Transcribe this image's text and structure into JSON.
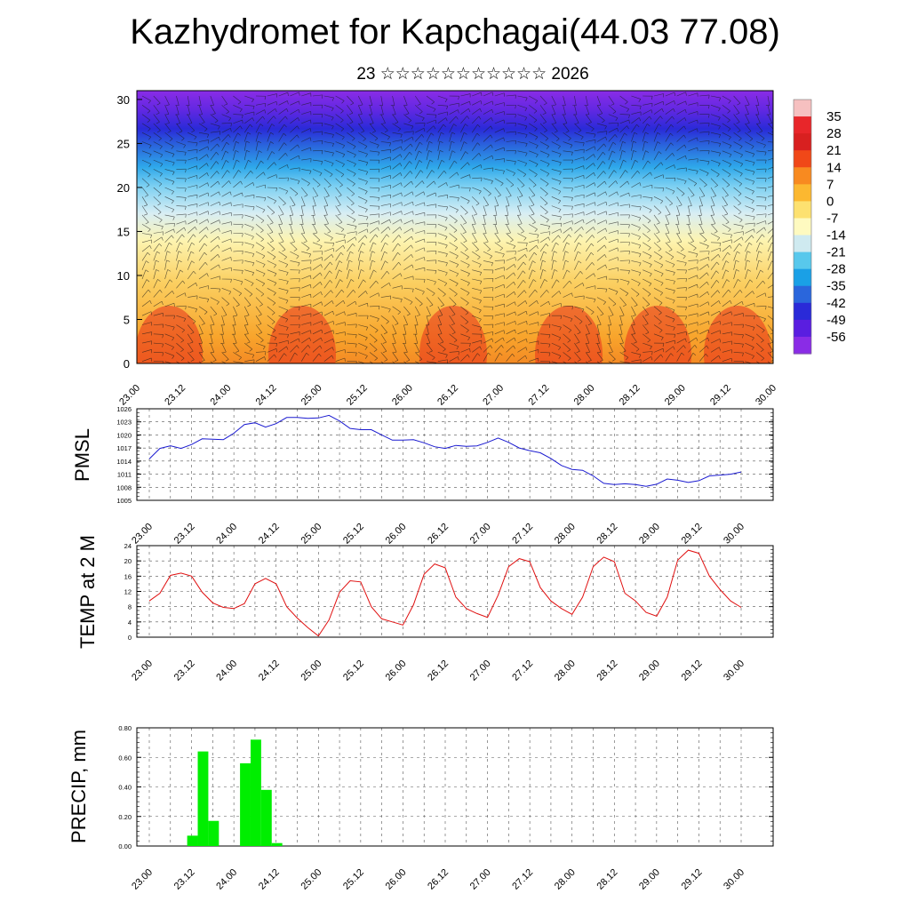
{
  "header": {
    "title": "Kazhydromet for Kapchagai(44.03 77.08)",
    "subtitle": "23 ☆☆☆☆☆☆☆☆☆☆☆ 2026"
  },
  "chart_data": [
    {
      "type": "heatmap",
      "name": "cross-section",
      "title": "",
      "xlabel": "",
      "ylabel": "",
      "x_ticks": [
        "23.00",
        "23.12",
        "24.00",
        "24.12",
        "25.00",
        "25.12",
        "26.00",
        "26.12",
        "27.00",
        "27.12",
        "28.00",
        "28.12",
        "29.00",
        "29.12",
        "30.00"
      ],
      "y_ticks": [
        0,
        5,
        10,
        15,
        20,
        25,
        30
      ],
      "ylim": [
        0,
        31
      ],
      "colorbar_labels": [
        "35",
        "28",
        "21",
        "14",
        "7",
        "0",
        "-7",
        "-14",
        "-21",
        "-28",
        "-35",
        "-42",
        "-49",
        "-56"
      ],
      "colorbar_colors": [
        "#f6c0c0",
        "#e8262a",
        "#d82020",
        "#f04818",
        "#f88a20",
        "#fcb830",
        "#fde170",
        "#fefac0",
        "#cfeaf0",
        "#58c8ec",
        "#1aa0e6",
        "#2a66dc",
        "#2a2ad8",
        "#5a1ee0",
        "#8a2ce6"
      ],
      "color_bands_by_height": [
        {
          "value": 14,
          "color": "#f48a24"
        },
        {
          "value": 10,
          "color": "#f8a52c"
        },
        {
          "value": 6,
          "color": "#fbd062"
        },
        {
          "value": 3,
          "color": "#fdf4b0"
        },
        {
          "value": 0,
          "color": "#d8eef4"
        },
        {
          "value": -12,
          "color": "#7cd0f2"
        },
        {
          "value": -25,
          "color": "#2ea8ea"
        },
        {
          "value": -38,
          "color": "#2a64dc"
        },
        {
          "value": -50,
          "color": "#2a2ad8"
        },
        {
          "value": -56,
          "color": "#6228e2"
        },
        {
          "value": -60,
          "color": "#8a2ce6"
        }
      ]
    },
    {
      "type": "line",
      "name": "pmsl",
      "ylabel": "PMSL",
      "color": "#1a1ad0",
      "x_ticks": [
        "23.00",
        "23.12",
        "24.00",
        "24.12",
        "25.00",
        "25.12",
        "26.00",
        "26.12",
        "27.00",
        "27.12",
        "28.00",
        "28.12",
        "29.00",
        "29.12",
        "30.00"
      ],
      "y_ticks": [
        "1005",
        "1008",
        "1011",
        "1014",
        "1017",
        "1020",
        "1023",
        "1026"
      ],
      "ylim": [
        1005,
        1026
      ],
      "values": [
        1014.5,
        1016.9,
        1017.5,
        1016.9,
        1017.8,
        1019.1,
        1019.0,
        1018.9,
        1020.4,
        1022.4,
        1022.8,
        1021.8,
        1022.6,
        1024.0,
        1024.0,
        1023.8,
        1023.9,
        1024.5,
        1023.2,
        1021.5,
        1021.2,
        1021.2,
        1020.0,
        1018.8,
        1018.8,
        1018.9,
        1018.2,
        1017.3,
        1016.9,
        1017.6,
        1017.4,
        1017.5,
        1018.3,
        1019.3,
        1018.3,
        1017.0,
        1016.4,
        1015.9,
        1014.6,
        1013.0,
        1012.1,
        1011.9,
        1010.6,
        1008.9,
        1008.6,
        1008.8,
        1008.6,
        1008.2,
        1008.7,
        1009.9,
        1009.6,
        1009.1,
        1009.5,
        1010.6,
        1010.8,
        1011.0,
        1011.5
      ],
      "x_step_hours": 3
    },
    {
      "type": "line",
      "name": "temp-2m",
      "ylabel": "TEMP at 2 M",
      "color": "#e01010",
      "x_ticks": [
        "23.00",
        "23.12",
        "24.00",
        "24.12",
        "25.00",
        "25.12",
        "26.00",
        "26.12",
        "27.00",
        "27.12",
        "28.00",
        "28.12",
        "29.00",
        "29.12",
        "30.00"
      ],
      "y_ticks": [
        "0",
        "4",
        "8",
        "12",
        "16",
        "20",
        "24"
      ],
      "ylim": [
        0,
        24
      ],
      "values": [
        9.5,
        11.5,
        16.2,
        16.8,
        16.0,
        11.8,
        9.0,
        7.8,
        7.5,
        8.8,
        14.0,
        15.4,
        14.0,
        8.0,
        5.0,
        2.5,
        0.3,
        4.5,
        11.8,
        14.8,
        14.5,
        8.0,
        4.8,
        4.0,
        3.2,
        8.5,
        16.5,
        19.2,
        18.2,
        10.5,
        7.5,
        6.2,
        5.2,
        11.0,
        18.5,
        20.6,
        19.8,
        13.0,
        9.5,
        7.5,
        6.0,
        10.5,
        18.5,
        21.0,
        19.8,
        11.5,
        9.5,
        6.5,
        5.5,
        10.5,
        20.2,
        22.8,
        22.0,
        16.0,
        12.5,
        9.5,
        7.8
      ],
      "x_step_hours": 3
    },
    {
      "type": "bar",
      "name": "precip",
      "ylabel": "PRECIP, mm",
      "color": "#00ee00",
      "x_ticks": [
        "23.00",
        "23.12",
        "24.00",
        "24.12",
        "25.00",
        "25.12",
        "26.00",
        "26.12",
        "27.00",
        "27.12",
        "28.00",
        "28.12",
        "29.00",
        "29.12",
        "30.00"
      ],
      "y_ticks": [
        "0.00",
        "0.20",
        "0.40",
        "0.60",
        "0.80"
      ],
      "ylim": [
        0,
        0.8
      ],
      "values": [
        0,
        0,
        0,
        0,
        0.07,
        0.64,
        0.17,
        0,
        0,
        0.56,
        0.72,
        0.38,
        0.02,
        0,
        0,
        0,
        0,
        0,
        0,
        0,
        0,
        0,
        0,
        0,
        0,
        0,
        0,
        0,
        0,
        0,
        0,
        0,
        0,
        0,
        0,
        0,
        0,
        0,
        0,
        0,
        0,
        0,
        0,
        0,
        0,
        0,
        0,
        0,
        0,
        0,
        0,
        0,
        0,
        0,
        0,
        0,
        0
      ],
      "x_step_hours": 3
    }
  ]
}
